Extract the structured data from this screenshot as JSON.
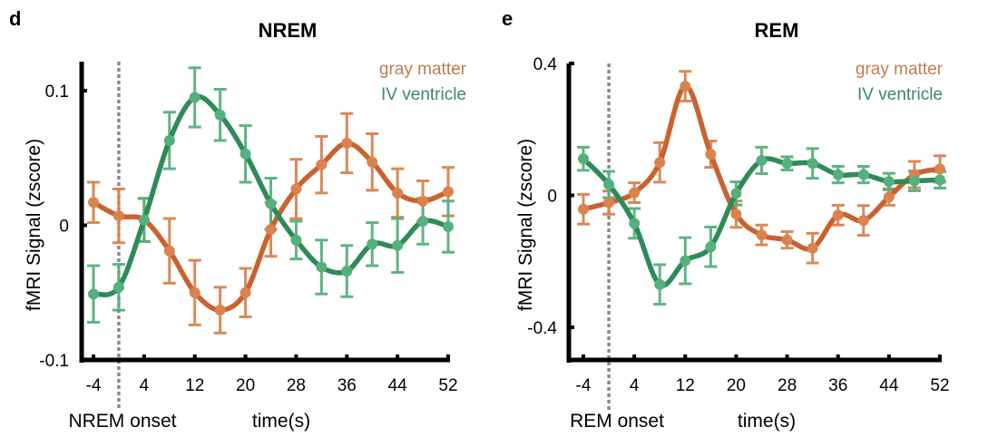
{
  "colors": {
    "gray_matter_line": "#c8622f",
    "gray_matter_marker": "#d9834f",
    "ventricle_line": "#2e8b57",
    "ventricle_marker": "#55b07e",
    "gray_matter_text": "#c27c52",
    "ventricle_text": "#3a8a62",
    "onset_line": "#8a8a8a"
  },
  "chart_data": [
    {
      "panel": "d",
      "type": "line",
      "title": "NREM",
      "xlabel": "time(s)",
      "ylabel": "fMRI Signal (zscore)",
      "onset_label": "NREM onset",
      "onset_x": 0,
      "xlim": [
        -4,
        52
      ],
      "ylim": [
        -0.1,
        0.1
      ],
      "xticks": [
        -4,
        4,
        12,
        20,
        28,
        36,
        44,
        52
      ],
      "yticks": [
        -0.1,
        0,
        0.1
      ],
      "ytick_labels": [
        "-0.1",
        "0",
        "0.1"
      ],
      "legend": "top-right",
      "x": [
        -4,
        0,
        4,
        8,
        12,
        16,
        20,
        24,
        28,
        32,
        36,
        40,
        44,
        48,
        52
      ],
      "series": [
        {
          "name": "gray matter",
          "values": [
            0.017,
            0.007,
            0.004,
            -0.019,
            -0.05,
            -0.063,
            -0.05,
            -0.003,
            0.027,
            0.045,
            0.061,
            0.047,
            0.024,
            0.018,
            0.025
          ],
          "errors": [
            0.015,
            0.02,
            0.016,
            0.024,
            0.024,
            0.017,
            0.018,
            0.02,
            0.022,
            0.021,
            0.022,
            0.021,
            0.018,
            0.015,
            0.018
          ]
        },
        {
          "name": "IV ventricle",
          "values": [
            -0.051,
            -0.046,
            0.004,
            0.063,
            0.095,
            0.082,
            0.053,
            0.016,
            -0.011,
            -0.031,
            -0.034,
            -0.014,
            -0.015,
            0.003,
            -0.001
          ],
          "errors": [
            0.021,
            0.017,
            0.016,
            0.021,
            0.022,
            0.019,
            0.021,
            0.019,
            0.014,
            0.02,
            0.019,
            0.016,
            0.02,
            0.017,
            0.019
          ]
        }
      ]
    },
    {
      "panel": "e",
      "type": "line",
      "title": "REM",
      "xlabel": "time(s)",
      "ylabel": "fMRI Signal (zscore)",
      "onset_label": "REM onset",
      "onset_x": 0,
      "xlim": [
        -4,
        52
      ],
      "ylim": [
        -0.5,
        0.4
      ],
      "xticks": [
        -4,
        4,
        12,
        20,
        28,
        36,
        44,
        52
      ],
      "yticks": [
        -0.4,
        0,
        0.4
      ],
      "ytick_labels": [
        "-0.4",
        "0",
        "0.4"
      ],
      "legend": "top-right",
      "x": [
        -4,
        0,
        4,
        8,
        12,
        16,
        20,
        24,
        28,
        32,
        36,
        40,
        44,
        48,
        52
      ],
      "series": [
        {
          "name": "gray matter",
          "values": [
            -0.042,
            -0.022,
            0.008,
            0.1,
            0.331,
            0.125,
            -0.057,
            -0.12,
            -0.135,
            -0.16,
            -0.06,
            -0.076,
            -0.005,
            0.063,
            0.08
          ],
          "errors": [
            0.045,
            0.035,
            0.03,
            0.06,
            0.045,
            0.04,
            0.04,
            0.03,
            0.025,
            0.045,
            0.03,
            0.045,
            0.025,
            0.04,
            0.04
          ]
        },
        {
          "name": "IV ventricle",
          "values": [
            0.111,
            0.033,
            -0.085,
            -0.27,
            -0.198,
            -0.156,
            0.006,
            0.106,
            0.097,
            0.097,
            0.063,
            0.063,
            0.042,
            0.044,
            0.047
          ],
          "errors": [
            0.035,
            0.04,
            0.045,
            0.06,
            0.07,
            0.06,
            0.035,
            0.04,
            0.02,
            0.045,
            0.025,
            0.025,
            0.025,
            0.03,
            0.025
          ]
        }
      ]
    }
  ]
}
